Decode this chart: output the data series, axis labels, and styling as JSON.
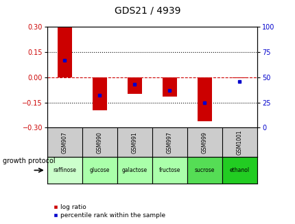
{
  "title": "GDS21 / 4939",
  "samples": [
    "GSM907",
    "GSM990",
    "GSM991",
    "GSM997",
    "GSM999",
    "GSM1001"
  ],
  "protocols": [
    "raffinose",
    "glucose",
    "galactose",
    "fructose",
    "sucrose",
    "ethanol"
  ],
  "protocol_colors": [
    "#ccffcc",
    "#aaffaa",
    "#aaffaa",
    "#aaffaa",
    "#55dd55",
    "#22cc22"
  ],
  "log_ratios": [
    0.295,
    -0.195,
    -0.1,
    -0.115,
    -0.26,
    -0.005
  ],
  "percentile_ranks": [
    67,
    32,
    43,
    37,
    25,
    46
  ],
  "ylim": [
    -0.3,
    0.3
  ],
  "yticks_left": [
    -0.3,
    -0.15,
    0,
    0.15,
    0.3
  ],
  "yticks_right": [
    0,
    25,
    50,
    75,
    100
  ],
  "bar_color": "#cc0000",
  "dot_color": "#0000cc",
  "hline_color_zero": "#cc0000",
  "bg_color": "#ffffff",
  "gsm_bg_color": "#cccccc",
  "legend_log_ratio": "log ratio",
  "legend_percentile": "percentile rank within the sample",
  "growth_protocol_label": "growth protocol"
}
